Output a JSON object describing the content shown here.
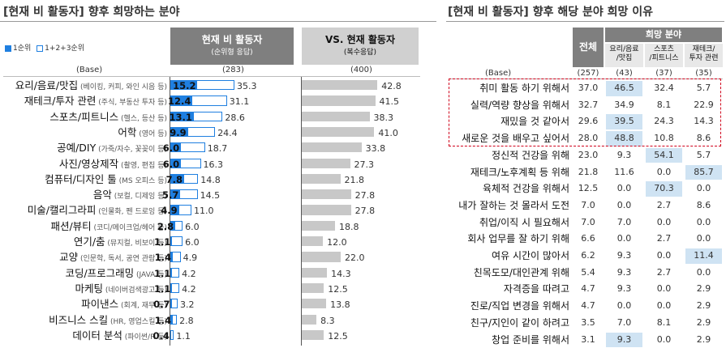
{
  "left": {
    "title": "[현재 비 활동자] 향후 희망하는 분야",
    "legend": {
      "rank1": "1순위",
      "rank123": "1+2+3순위"
    },
    "base_label": "(Base)",
    "col1": {
      "title": "현재 비 활동자",
      "subtitle": "(순위형 응답)",
      "base": "(283)"
    },
    "col2": {
      "title": "VS. 현재 활동자",
      "subtitle": "(복수응답)",
      "base": "(400)"
    },
    "colors": {
      "rank1": "#1f7fe0",
      "outline": "#1f7fe0",
      "gray": "#c8c8c8"
    }
  },
  "right": {
    "title": "[현재 비 활동자] 향후 해당 분야 희망 이유",
    "header_group": "희망 분야",
    "col_total": "전체",
    "col_heads": [
      "요리/음료\n/맛집",
      "스포츠\n/피트니스",
      "재테크/\n투자 관련"
    ],
    "base_label": "(Base)",
    "bases": [
      "(257)",
      "(43)",
      "(37)",
      "(35)"
    ],
    "colors": {
      "highlight": "#cfe3f3",
      "dashed": "#d0021b"
    }
  },
  "chart_data": [
    {
      "type": "bar",
      "title": "[현재 비 활동자] 향후 희망하는 분야",
      "categories": [
        "요리/음료/맛집",
        "재테크/투자 관련",
        "스포츠/피트니스",
        "어학",
        "공예/DIY",
        "사진/영상제작",
        "컴퓨터/디자인 툴",
        "음악",
        "미술/캘리그라피",
        "패션/뷰티",
        "연기/춤",
        "교양",
        "코딩/프로그래밍",
        "마케팅",
        "파이낸스",
        "비즈니스 스킬",
        "데이터 분석"
      ],
      "category_notes": [
        "(베이킹, 커피, 와인 시음 등)",
        "(주식, 부동산 투자 등)",
        "(헬스, 등산 등)",
        "(영어 등)",
        "(가죽/자수, 꽃꽂이 등)",
        "(촬영, 편집 등)",
        "(MS 오피스 등)",
        "(보컬, 디제잉 등)",
        "(인물화, 펜 드로잉 등)",
        "(코디/메이크업/헤어 등)",
        "(뮤지컬, 비보이 등)",
        "(인문학, 독서, 공연 관람 등)",
        "(JAVA 등)",
        "(네이버검색광고 등)",
        "(회계, 재무 등)",
        "(HR, 영업스킬 등)",
        "(파이썬/R 등)"
      ],
      "series": [
        {
          "name": "1순위",
          "values": [
            15.2,
            12.4,
            13.1,
            9.9,
            6.0,
            6.0,
            7.8,
            5.7,
            4.9,
            2.8,
            1.1,
            1.4,
            1.1,
            1.1,
            0.7,
            1.4,
            0.4
          ]
        },
        {
          "name": "1+2+3순위",
          "values": [
            35.3,
            31.1,
            28.6,
            24.4,
            18.7,
            16.3,
            14.8,
            14.5,
            11.0,
            6.0,
            6.0,
            4.9,
            4.2,
            4.2,
            3.2,
            2.8,
            1.1
          ]
        },
        {
          "name": "VS. 현재 활동자",
          "values": [
            42.8,
            41.5,
            38.3,
            41.0,
            33.8,
            27.3,
            21.8,
            27.8,
            27.8,
            18.8,
            12.0,
            22.0,
            14.3,
            12.5,
            13.8,
            8.3,
            12.5
          ]
        }
      ],
      "xlim": [
        0,
        50
      ]
    },
    {
      "type": "table",
      "title": "[현재 비 활동자] 향후 해당 분야 희망 이유",
      "columns": [
        "전체",
        "요리/음료/맛집",
        "스포츠/피트니스",
        "재테크/투자 관련"
      ],
      "rows": [
        {
          "label": "취미 활동 하기 위해서",
          "values": [
            "37.0",
            "46.5",
            "32.4",
            "5.7"
          ],
          "hl": [
            false,
            true,
            false,
            false
          ]
        },
        {
          "label": "실력/역량 향상을 위해서",
          "values": [
            "32.7",
            "34.9",
            "8.1",
            "22.9"
          ],
          "hl": [
            false,
            false,
            false,
            false
          ]
        },
        {
          "label": "재밌을 것 같아서",
          "values": [
            "29.6",
            "39.5",
            "24.3",
            "14.3"
          ],
          "hl": [
            false,
            true,
            false,
            false
          ]
        },
        {
          "label": "새로운 것을 배우고 싶어서",
          "values": [
            "28.0",
            "48.8",
            "10.8",
            "8.6"
          ],
          "hl": [
            false,
            true,
            false,
            false
          ]
        },
        {
          "label": "정신적 건강을 위해",
          "values": [
            "23.0",
            "9.3",
            "54.1",
            "5.7"
          ],
          "hl": [
            false,
            false,
            true,
            false
          ]
        },
        {
          "label": "재테크/노후계획 등 위해",
          "values": [
            "21.8",
            "11.6",
            "0.0",
            "85.7"
          ],
          "hl": [
            false,
            false,
            false,
            true
          ]
        },
        {
          "label": "육체적 건강을 위해서",
          "values": [
            "12.5",
            "0.0",
            "70.3",
            "0.0"
          ],
          "hl": [
            false,
            false,
            true,
            false
          ]
        },
        {
          "label": "내가 잘하는 것 몰라서 도전",
          "values": [
            "7.0",
            "0.0",
            "2.7",
            "8.6"
          ],
          "hl": [
            false,
            false,
            false,
            false
          ]
        },
        {
          "label": "취업/이직 시 필요해서",
          "values": [
            "7.0",
            "7.0",
            "0.0",
            "0.0"
          ],
          "hl": [
            false,
            false,
            false,
            false
          ]
        },
        {
          "label": "회사 업무를 잘 하기 위해",
          "values": [
            "6.6",
            "0.0",
            "2.7",
            "0.0"
          ],
          "hl": [
            false,
            false,
            false,
            false
          ]
        },
        {
          "label": "여유 시간이 많아서",
          "values": [
            "6.2",
            "9.3",
            "0.0",
            "11.4"
          ],
          "hl": [
            false,
            false,
            false,
            true
          ]
        },
        {
          "label": "친목도모/대인관계 위해",
          "values": [
            "5.4",
            "9.3",
            "2.7",
            "0.0"
          ],
          "hl": [
            false,
            false,
            false,
            false
          ]
        },
        {
          "label": "자격증을 따려고",
          "values": [
            "4.7",
            "9.3",
            "0.0",
            "2.9"
          ],
          "hl": [
            false,
            false,
            false,
            false
          ]
        },
        {
          "label": "진로/직업 변경을 위해서",
          "values": [
            "4.7",
            "0.0",
            "0.0",
            "2.9"
          ],
          "hl": [
            false,
            false,
            false,
            false
          ]
        },
        {
          "label": "친구/지인이 같이 하려고",
          "values": [
            "3.5",
            "7.0",
            "8.1",
            "2.9"
          ],
          "hl": [
            false,
            false,
            false,
            false
          ]
        },
        {
          "label": "창업 준비를 위해서",
          "values": [
            "3.1",
            "9.3",
            "0.0",
            "2.9"
          ],
          "hl": [
            false,
            true,
            false,
            false
          ]
        }
      ]
    }
  ]
}
